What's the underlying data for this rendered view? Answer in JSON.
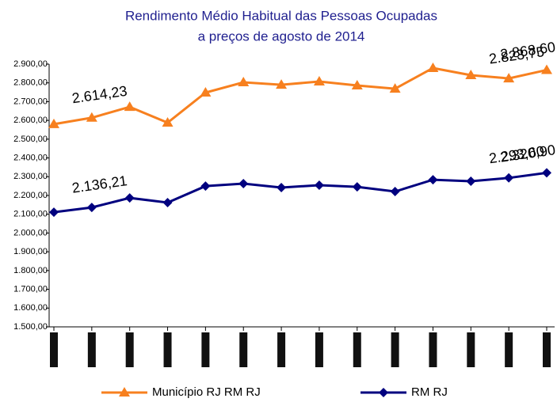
{
  "chart_data": {
    "type": "line",
    "title": "Rendimento Médio Habitual das Pessoas Ocupadas",
    "subtitle": "a preços de agosto de 2014",
    "categories": [
      null,
      null,
      null,
      null,
      null,
      null,
      null,
      null,
      null,
      null,
      null,
      null,
      null,
      null
    ],
    "series": [
      {
        "name": "Município RJ RM RJ",
        "color": "#f7801f",
        "marker": "triangle",
        "values": [
          2580,
          2614.23,
          2672,
          2588,
          2748,
          2803,
          2790,
          2807,
          2786,
          2769,
          2879,
          2841,
          2823.75,
          2868.6
        ],
        "value_labels": [
          null,
          "2.614,23",
          null,
          null,
          null,
          null,
          null,
          null,
          null,
          null,
          null,
          null,
          "2.823,75",
          "2.868,60"
        ]
      },
      {
        "name": "RM RJ",
        "color": "#00007f",
        "marker": "diamond",
        "values": [
          2111,
          2136.21,
          2187,
          2162,
          2250,
          2263,
          2242,
          2255,
          2246,
          2221,
          2284,
          2276,
          2293.6,
          2320.9
        ],
        "value_labels": [
          null,
          "2.136,21",
          null,
          null,
          null,
          null,
          null,
          null,
          null,
          null,
          null,
          null,
          "2.293,60",
          "2.320,90"
        ]
      }
    ],
    "ylim": [
      1500,
      2900
    ],
    "yticks": [
      {
        "value": 1500,
        "label": "1.500,00"
      },
      {
        "value": 1600,
        "label": "1.600,00"
      },
      {
        "value": 1700,
        "label": "1.700,00"
      },
      {
        "value": 1800,
        "label": "1.800,00"
      },
      {
        "value": 1900,
        "label": "1.900,00"
      },
      {
        "value": 2000,
        "label": "2.000,00"
      },
      {
        "value": 2100,
        "label": "2.100,00"
      },
      {
        "value": 2200,
        "label": "2.200,00"
      },
      {
        "value": 2300,
        "label": "2.300,00"
      },
      {
        "value": 2400,
        "label": "2.400,00"
      },
      {
        "value": 2500,
        "label": "2.500,00"
      },
      {
        "value": 2600,
        "label": "2.600,00"
      },
      {
        "value": 2700,
        "label": "2.700,00"
      },
      {
        "value": 2800,
        "label": "2.800,00"
      },
      {
        "value": 2900,
        "label": "2.900,00"
      }
    ],
    "grid": false,
    "legend": "bottom"
  }
}
